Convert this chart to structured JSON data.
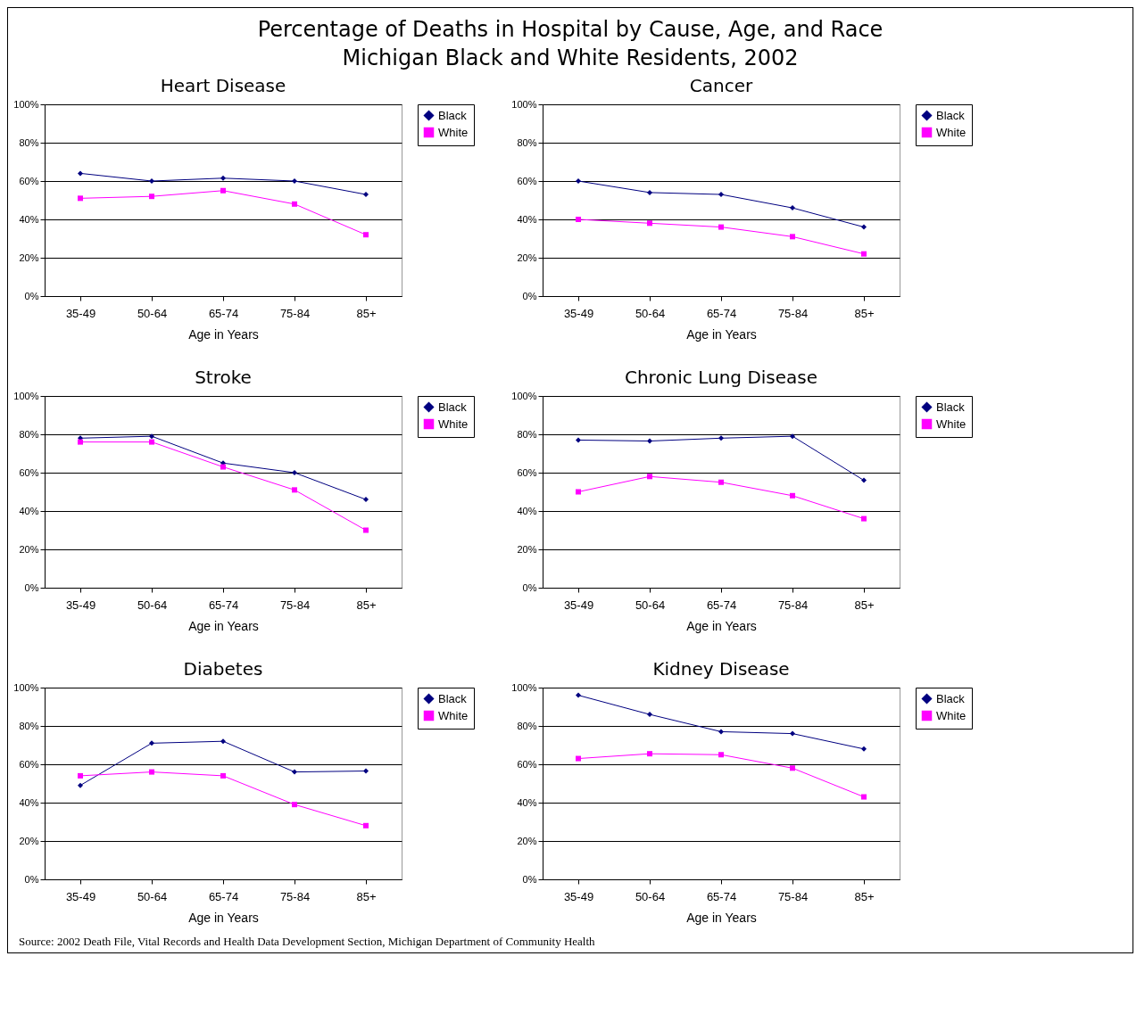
{
  "chart_data": [
    {
      "type": "line",
      "title": "Heart Disease",
      "xlabel": "Age in Years",
      "categories": [
        "35-49",
        "50-64",
        "65-74",
        "75-84",
        "85+"
      ],
      "ylim": [
        0,
        100
      ],
      "yticks": [
        {
          "value": 0,
          "label": "0%"
        },
        {
          "value": 20,
          "label": "20%"
        },
        {
          "value": 40,
          "label": "40%"
        },
        {
          "value": 60,
          "label": "60%"
        },
        {
          "value": 80,
          "label": "80%"
        },
        {
          "value": 100,
          "label": "100%"
        }
      ],
      "grid": "y",
      "legend": "right",
      "line_style": "solid",
      "annotations": [
        "Percentage of Deaths in Hospital by Cause, Age, and Race",
        "Michigan Black and White Residents, 2002",
        "Source: 2002 Death File, Vital Records and Health Data Development Section, Michigan Department of Community Health"
      ],
      "series": [
        {
          "name": "Black",
          "color": "#000080",
          "marker": "diamond",
          "values": [
            64,
            60,
            61.5,
            60,
            53
          ]
        },
        {
          "name": "White",
          "color": "#ff00ff",
          "marker": "square",
          "values": [
            51,
            52,
            55,
            48,
            32
          ]
        }
      ]
    },
    {
      "type": "line",
      "title": "Cancer",
      "xlabel": "Age in Years",
      "categories": [
        "35-49",
        "50-64",
        "65-74",
        "75-84",
        "85+"
      ],
      "ylim": [
        0,
        100
      ],
      "yticks": [
        {
          "value": 0,
          "label": "0%"
        },
        {
          "value": 20,
          "label": "20%"
        },
        {
          "value": 40,
          "label": "40%"
        },
        {
          "value": 60,
          "label": "60%"
        },
        {
          "value": 80,
          "label": "80%"
        },
        {
          "value": 100,
          "label": "100%"
        }
      ],
      "grid": "y",
      "legend": "right",
      "line_style": "solid",
      "series": [
        {
          "name": "Black",
          "color": "#000080",
          "marker": "diamond",
          "values": [
            60,
            54,
            53,
            46,
            36
          ]
        },
        {
          "name": "White",
          "color": "#ff00ff",
          "marker": "square",
          "values": [
            40,
            38,
            36,
            31,
            22
          ]
        }
      ]
    },
    {
      "type": "line",
      "title": "Stroke",
      "xlabel": "Age in Years",
      "categories": [
        "35-49",
        "50-64",
        "65-74",
        "75-84",
        "85+"
      ],
      "ylim": [
        0,
        100
      ],
      "yticks": [
        {
          "value": 0,
          "label": "0%"
        },
        {
          "value": 20,
          "label": "20%"
        },
        {
          "value": 40,
          "label": "40%"
        },
        {
          "value": 60,
          "label": "60%"
        },
        {
          "value": 80,
          "label": "80%"
        },
        {
          "value": 100,
          "label": "100%"
        }
      ],
      "grid": "y",
      "legend": "right",
      "line_style": "solid",
      "series": [
        {
          "name": "Black",
          "color": "#000080",
          "marker": "diamond",
          "values": [
            78,
            79,
            65,
            60,
            46
          ]
        },
        {
          "name": "White",
          "color": "#ff00ff",
          "marker": "square",
          "values": [
            76,
            76,
            63,
            51,
            30
          ]
        }
      ]
    },
    {
      "type": "line",
      "title": "Chronic Lung Disease",
      "xlabel": "Age in Years",
      "categories": [
        "35-49",
        "50-64",
        "65-74",
        "75-84",
        "85+"
      ],
      "ylim": [
        0,
        100
      ],
      "yticks": [
        {
          "value": 0,
          "label": "0%"
        },
        {
          "value": 20,
          "label": "20%"
        },
        {
          "value": 40,
          "label": "40%"
        },
        {
          "value": 60,
          "label": "60%"
        },
        {
          "value": 80,
          "label": "80%"
        },
        {
          "value": 100,
          "label": "100%"
        }
      ],
      "grid": "y",
      "legend": "right",
      "line_style": "solid",
      "series": [
        {
          "name": "Black",
          "color": "#000080",
          "marker": "diamond",
          "values": [
            77,
            76.5,
            78,
            79,
            56
          ]
        },
        {
          "name": "White",
          "color": "#ff00ff",
          "marker": "square",
          "values": [
            50,
            58,
            55,
            48,
            36
          ]
        }
      ]
    },
    {
      "type": "line",
      "title": "Diabetes",
      "xlabel": "Age in Years",
      "categories": [
        "35-49",
        "50-64",
        "65-74",
        "75-84",
        "85+"
      ],
      "ylim": [
        0,
        100
      ],
      "yticks": [
        {
          "value": 0,
          "label": "0%"
        },
        {
          "value": 20,
          "label": "20%"
        },
        {
          "value": 40,
          "label": "40%"
        },
        {
          "value": 60,
          "label": "60%"
        },
        {
          "value": 80,
          "label": "80%"
        },
        {
          "value": 100,
          "label": "100%"
        }
      ],
      "grid": "y",
      "legend": "right",
      "line_style": "solid",
      "series": [
        {
          "name": "Black",
          "color": "#000080",
          "marker": "diamond",
          "values": [
            49,
            71,
            72,
            56,
            56.5
          ]
        },
        {
          "name": "White",
          "color": "#ff00ff",
          "marker": "square",
          "values": [
            54,
            56,
            54,
            39,
            28
          ]
        }
      ]
    },
    {
      "type": "line",
      "title": "Kidney Disease",
      "xlabel": "Age in Years",
      "categories": [
        "35-49",
        "50-64",
        "65-74",
        "75-84",
        "85+"
      ],
      "ylim": [
        0,
        100
      ],
      "yticks": [
        {
          "value": 0,
          "label": "0%"
        },
        {
          "value": 20,
          "label": "20%"
        },
        {
          "value": 40,
          "label": "40%"
        },
        {
          "value": 60,
          "label": "60%"
        },
        {
          "value": 80,
          "label": "80%"
        },
        {
          "value": 100,
          "label": "100%"
        }
      ],
      "grid": "y",
      "legend": "right",
      "line_style": "solid",
      "series": [
        {
          "name": "Black",
          "color": "#000080",
          "marker": "diamond",
          "values": [
            96,
            86,
            77,
            76,
            68
          ]
        },
        {
          "name": "White",
          "color": "#ff00ff",
          "marker": "square",
          "values": [
            63,
            65.5,
            65,
            58,
            43
          ]
        }
      ]
    }
  ]
}
